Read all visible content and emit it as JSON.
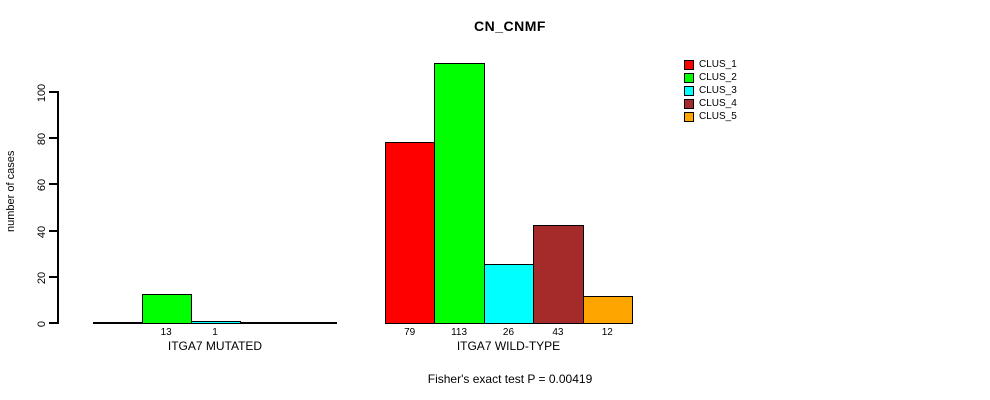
{
  "chart_data": {
    "type": "bar",
    "title": "CN_CNMF",
    "ylabel": "number of cases",
    "yticks": [
      0,
      20,
      40,
      60,
      80,
      100
    ],
    "ylim": [
      0,
      113
    ],
    "grid": false,
    "legend_position": "top-right",
    "series": [
      {
        "name": "CLUS_1",
        "color": "#FF0000"
      },
      {
        "name": "CLUS_2",
        "color": "#00FF00"
      },
      {
        "name": "CLUS_3",
        "color": "#00FFFF"
      },
      {
        "name": "CLUS_4",
        "color": "#A52A2A"
      },
      {
        "name": "CLUS_5",
        "color": "#FFA500"
      }
    ],
    "groups": [
      {
        "label": "ITGA7 MUTATED",
        "values": [
          0,
          13,
          1,
          0,
          0
        ],
        "bar_labels": [
          "",
          "13",
          "1",
          "",
          ""
        ]
      },
      {
        "label": "ITGA7 WILD-TYPE",
        "values": [
          79,
          113,
          26,
          43,
          12
        ],
        "bar_labels": [
          "79",
          "113",
          "26",
          "43",
          "12"
        ]
      }
    ],
    "footnote": "Fisher's exact test P = 0.00419"
  }
}
